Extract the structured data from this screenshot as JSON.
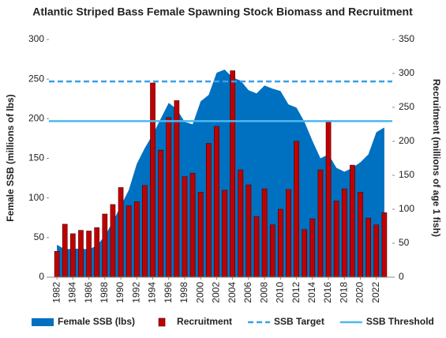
{
  "chart_data": {
    "type": "combo",
    "title": "Atlantic Striped Bass Female Spawning Stock Biomass and Recruitment",
    "ylabel": "Female SSB (millions of lbs)",
    "y2label": "Recruitment (millions of age 1 fish)",
    "x": [
      1982,
      1983,
      1984,
      1985,
      1986,
      1987,
      1988,
      1989,
      1990,
      1991,
      1992,
      1993,
      1994,
      1995,
      1996,
      1997,
      1998,
      1999,
      2000,
      2001,
      2002,
      2003,
      2004,
      2005,
      2006,
      2007,
      2008,
      2009,
      2010,
      2011,
      2012,
      2013,
      2014,
      2015,
      2016,
      2017,
      2018,
      2019,
      2020,
      2021,
      2022,
      2023
    ],
    "xlim": [
      1981,
      2024
    ],
    "xticks": [
      1982,
      1984,
      1986,
      1988,
      1990,
      1992,
      1994,
      1996,
      1998,
      2000,
      2002,
      2004,
      2006,
      2008,
      2010,
      2012,
      2014,
      2016,
      2018,
      2020,
      2022
    ],
    "ylim": [
      0,
      300
    ],
    "yticks": [
      0,
      50,
      100,
      150,
      200,
      250,
      300
    ],
    "y2lim": [
      0,
      350
    ],
    "y2ticks": [
      0,
      50,
      100,
      150,
      200,
      250,
      300,
      350
    ],
    "series": [
      {
        "name": "Female SSB (lbs)",
        "kind": "area",
        "color": "#0070c0",
        "values": [
          41,
          35,
          36,
          36,
          35,
          40,
          52,
          70,
          90,
          110,
          143,
          163,
          180,
          200,
          220,
          212,
          196,
          193,
          222,
          230,
          258,
          262,
          252,
          248,
          236,
          232,
          242,
          238,
          235,
          218,
          214,
          196,
          172,
          150,
          155,
          138,
          133,
          138,
          145,
          155,
          183,
          189
        ]
      },
      {
        "name": "Recruitment",
        "kind": "bar",
        "axis": "y2",
        "color": "#c00000",
        "values": [
          38,
          78,
          64,
          69,
          68,
          73,
          93,
          107,
          132,
          105,
          111,
          135,
          286,
          187,
          235,
          260,
          148,
          153,
          125,
          197,
          222,
          128,
          304,
          158,
          136,
          89,
          130,
          77,
          100,
          129,
          200,
          70,
          86,
          158,
          230,
          112,
          130,
          165,
          125,
          87,
          77,
          95
        ]
      },
      {
        "name": "SSB Target",
        "kind": "dashed",
        "color": "#3aa0e8",
        "value": 247
      },
      {
        "name": "SSB Threshold",
        "kind": "line",
        "color": "#4db8f0",
        "value": 197
      }
    ]
  }
}
